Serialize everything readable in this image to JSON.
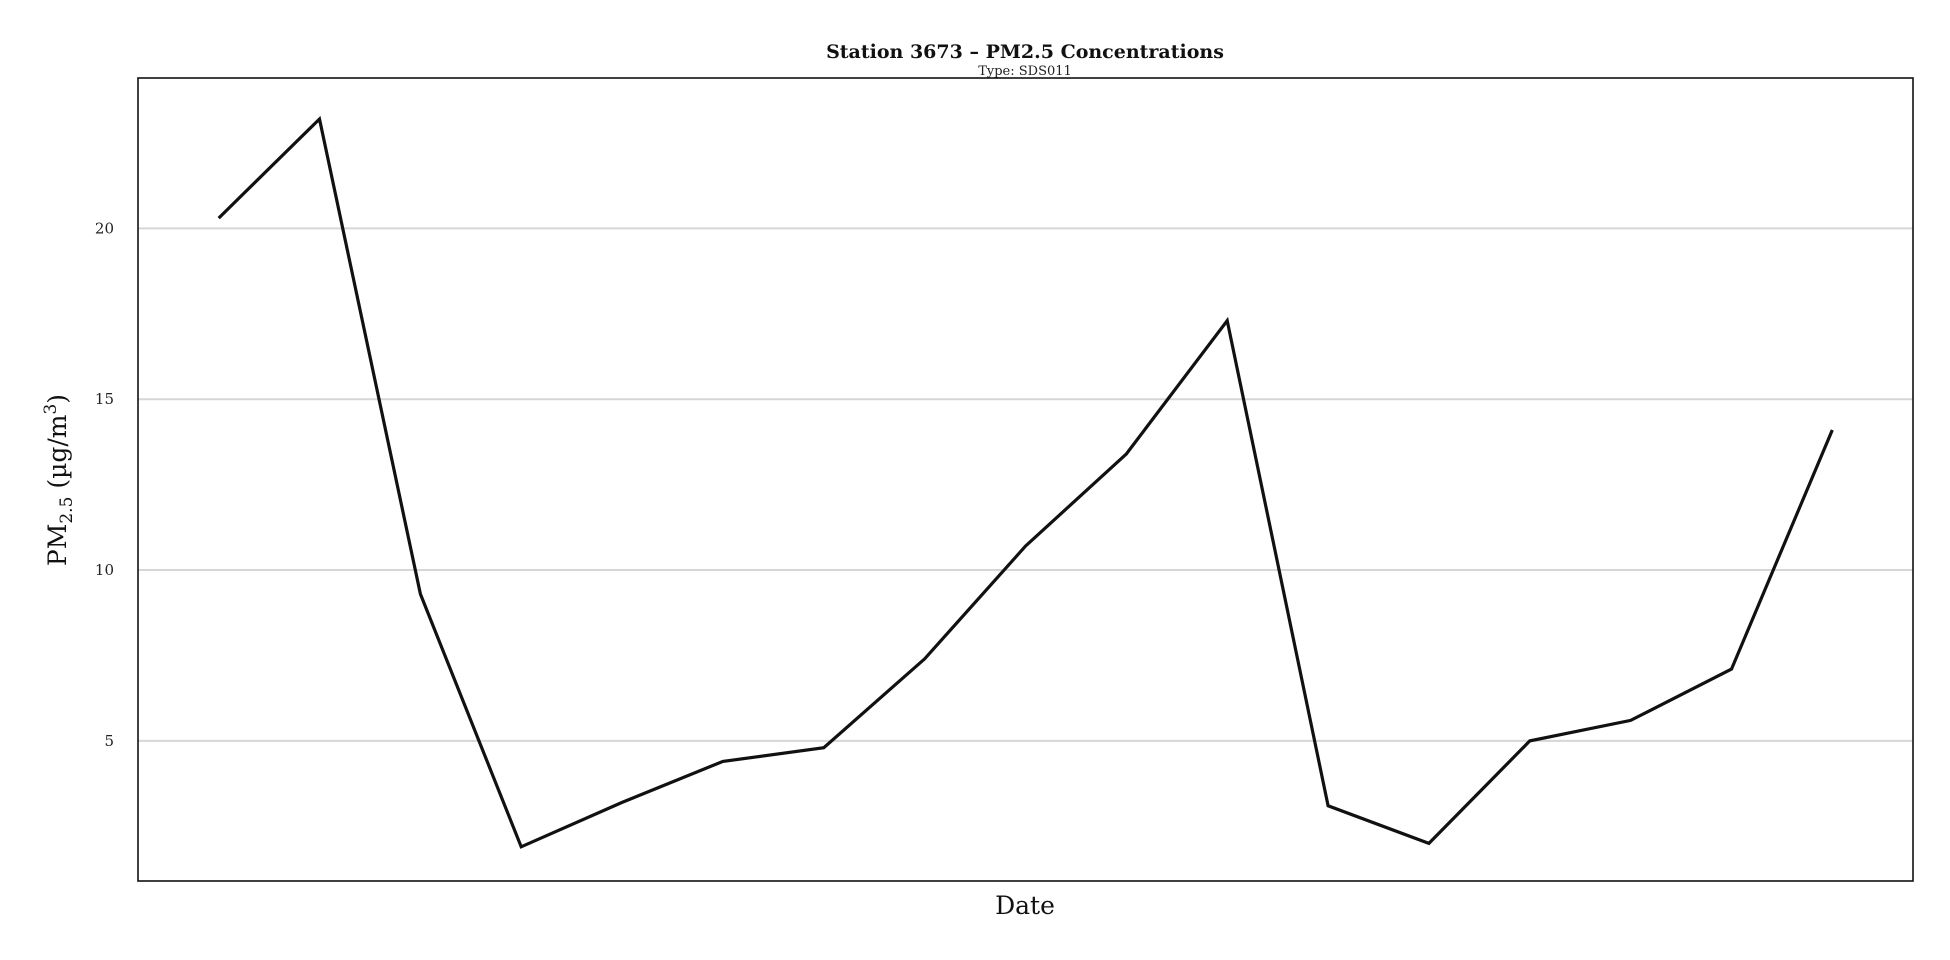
{
  "chart_data": {
    "type": "line",
    "title": "Station 3673 – PM2.5 Concentrations",
    "subtitle": "Type: SDS011",
    "xlabel": "Date",
    "ylabel": "PM2.5 (µg/m3)",
    "ylabel_parts": {
      "main": "PM",
      "sub": "2.5",
      "unit": " (µg/m",
      "sup": "3",
      "close": ")"
    },
    "x": [
      1,
      2,
      3,
      4,
      5,
      6,
      7,
      8,
      9,
      10,
      11,
      12,
      13,
      14,
      15,
      16,
      17
    ],
    "xlim": [
      0.2,
      17.8
    ],
    "ylim": [
      0.9,
      24.4
    ],
    "yticks": [
      5,
      10,
      15,
      20
    ],
    "ytick_labels": [
      "5",
      "10",
      "15",
      "20"
    ],
    "grid": {
      "horizontal": true,
      "vertical": false
    },
    "series": [
      {
        "values": [
          20.3,
          23.2,
          9.3,
          1.9,
          3.2,
          4.4,
          4.8,
          7.4,
          10.7,
          13.4,
          17.3,
          3.1,
          2.0,
          5.0,
          5.6,
          7.1,
          14.1
        ]
      }
    ],
    "colors": {
      "line": "#111111",
      "grid": "#d6d6d6",
      "frame": "#111111"
    }
  }
}
